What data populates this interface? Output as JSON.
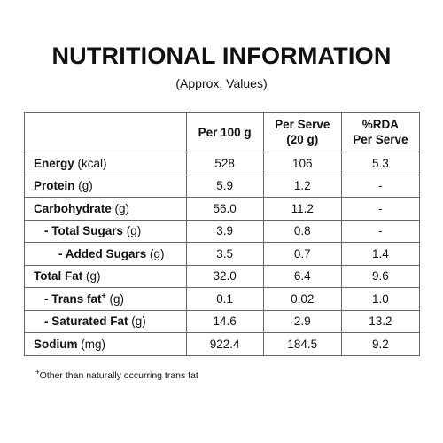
{
  "title": "NUTRITIONAL INFORMATION",
  "subtitle": "(Approx. Values)",
  "table": {
    "headers": {
      "per100": "Per 100 g",
      "per_serve_line1": "Per Serve",
      "per_serve_line2": "(20 g)",
      "rda_line1": "%RDA",
      "rda_line2": "Per Serve"
    },
    "rows": [
      {
        "name": "Energy",
        "unit": " (kcal)",
        "per100": "528",
        "serve": "106",
        "rda": "5.3"
      },
      {
        "name": "Protein",
        "unit": " (g)",
        "per100": "5.9",
        "serve": "1.2",
        "rda": "-"
      },
      {
        "name": "Carbohydrate",
        "unit": " (g)",
        "per100": "56.0",
        "serve": "11.2",
        "rda": "-"
      },
      {
        "name": "- Total Sugars",
        "unit": " (g)",
        "per100": "3.9",
        "serve": "0.8",
        "rda": "-"
      },
      {
        "name": "- Added Sugars",
        "unit": " (g)",
        "per100": "3.5",
        "serve": "0.7",
        "rda": "1.4"
      },
      {
        "name": "Total Fat",
        "unit": " (g)",
        "per100": "32.0",
        "serve": "6.4",
        "rda": "9.6"
      },
      {
        "name": "- Trans fat",
        "mark": "+",
        "unit": " (g)",
        "per100": "0.1",
        "serve": "0.02",
        "rda": "1.0"
      },
      {
        "name": "- Saturated Fat",
        "unit": " (g)",
        "per100": "14.6",
        "serve": "2.9",
        "rda": "13.2"
      },
      {
        "name": "Sodium",
        "unit": " (mg)",
        "per100": "922.4",
        "serve": "184.5",
        "rda": "9.2"
      }
    ]
  },
  "footnote": {
    "mark": "+",
    "text": "Other than naturally occurring trans fat"
  }
}
